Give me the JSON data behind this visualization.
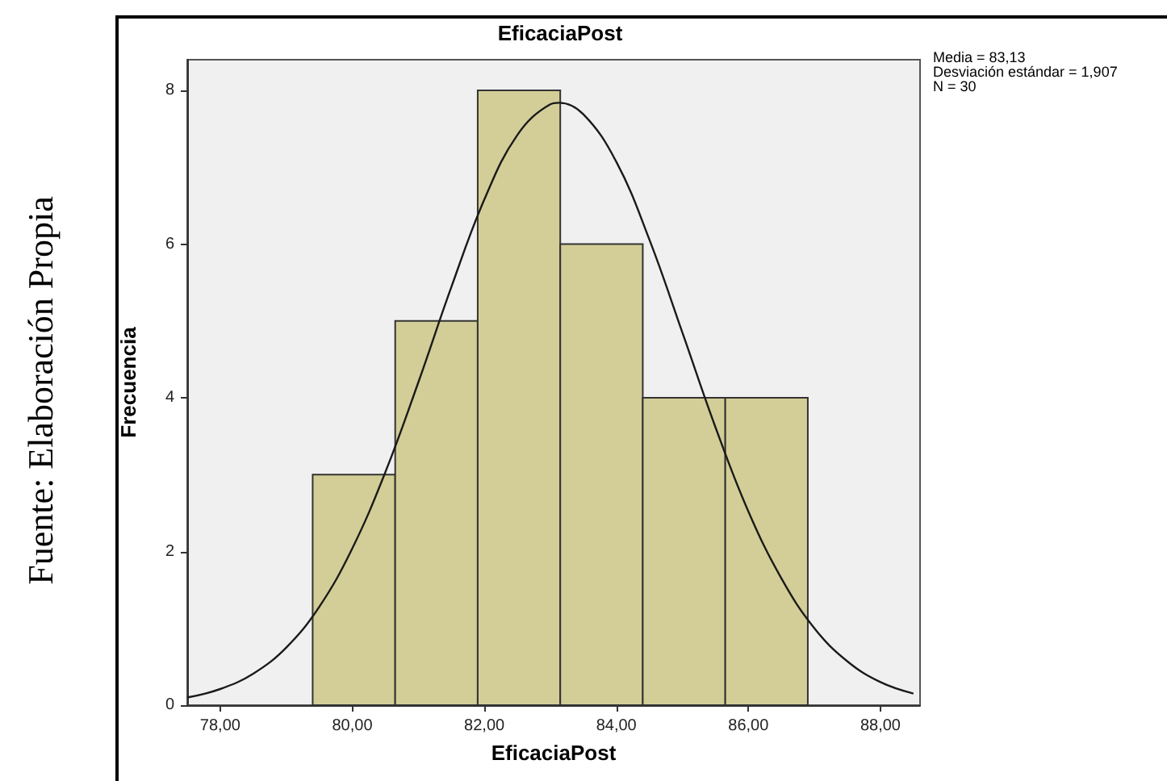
{
  "chart_data": {
    "type": "histogram",
    "title": "EficaciaPost",
    "xlabel": "EficaciaPost",
    "ylabel": "Frecuencia",
    "bins": [
      79.4,
      80.65,
      81.9,
      83.15,
      84.4,
      85.65,
      86.9
    ],
    "values": [
      3,
      5,
      8,
      6,
      4,
      4
    ],
    "color": "#d3ce97",
    "series": [
      {
        "type": "line",
        "color": "#1a1a1a",
        "x": [
          77.5,
          78,
          78.5,
          79,
          79.5,
          80,
          80.5,
          81,
          81.5,
          82,
          82.5,
          83,
          83.13,
          83.5,
          84,
          84.5,
          85,
          85.5,
          86,
          86.5,
          87,
          87.5,
          88,
          88.5
        ],
        "values": [
          0.1,
          0.21,
          0.41,
          0.75,
          1.28,
          2.04,
          3.03,
          4.2,
          5.44,
          6.58,
          7.42,
          7.82,
          7.84,
          7.69,
          7.07,
          6.06,
          4.85,
          3.62,
          2.52,
          1.65,
          1.0,
          0.57,
          0.3,
          0.15
        ]
      }
    ],
    "xlim": [
      77.5,
      88.6
    ],
    "ylim": [
      0,
      8.4
    ],
    "xticks": [
      {
        "value": 78,
        "label": "78,00"
      },
      {
        "value": 80,
        "label": "80,00"
      },
      {
        "value": 82,
        "label": "82,00"
      },
      {
        "value": 84,
        "label": "84,00"
      },
      {
        "value": 86,
        "label": "86,00"
      },
      {
        "value": 88,
        "label": "88,00"
      }
    ],
    "yticks": [
      0,
      2,
      4,
      6,
      8
    ],
    "grid": false,
    "marker": "none",
    "line_style": "solid",
    "annotations": [
      "Media = 83,13\nDesviación estándar = 1,907\nN = 30",
      "Fuente: Elaboración Propia"
    ]
  }
}
